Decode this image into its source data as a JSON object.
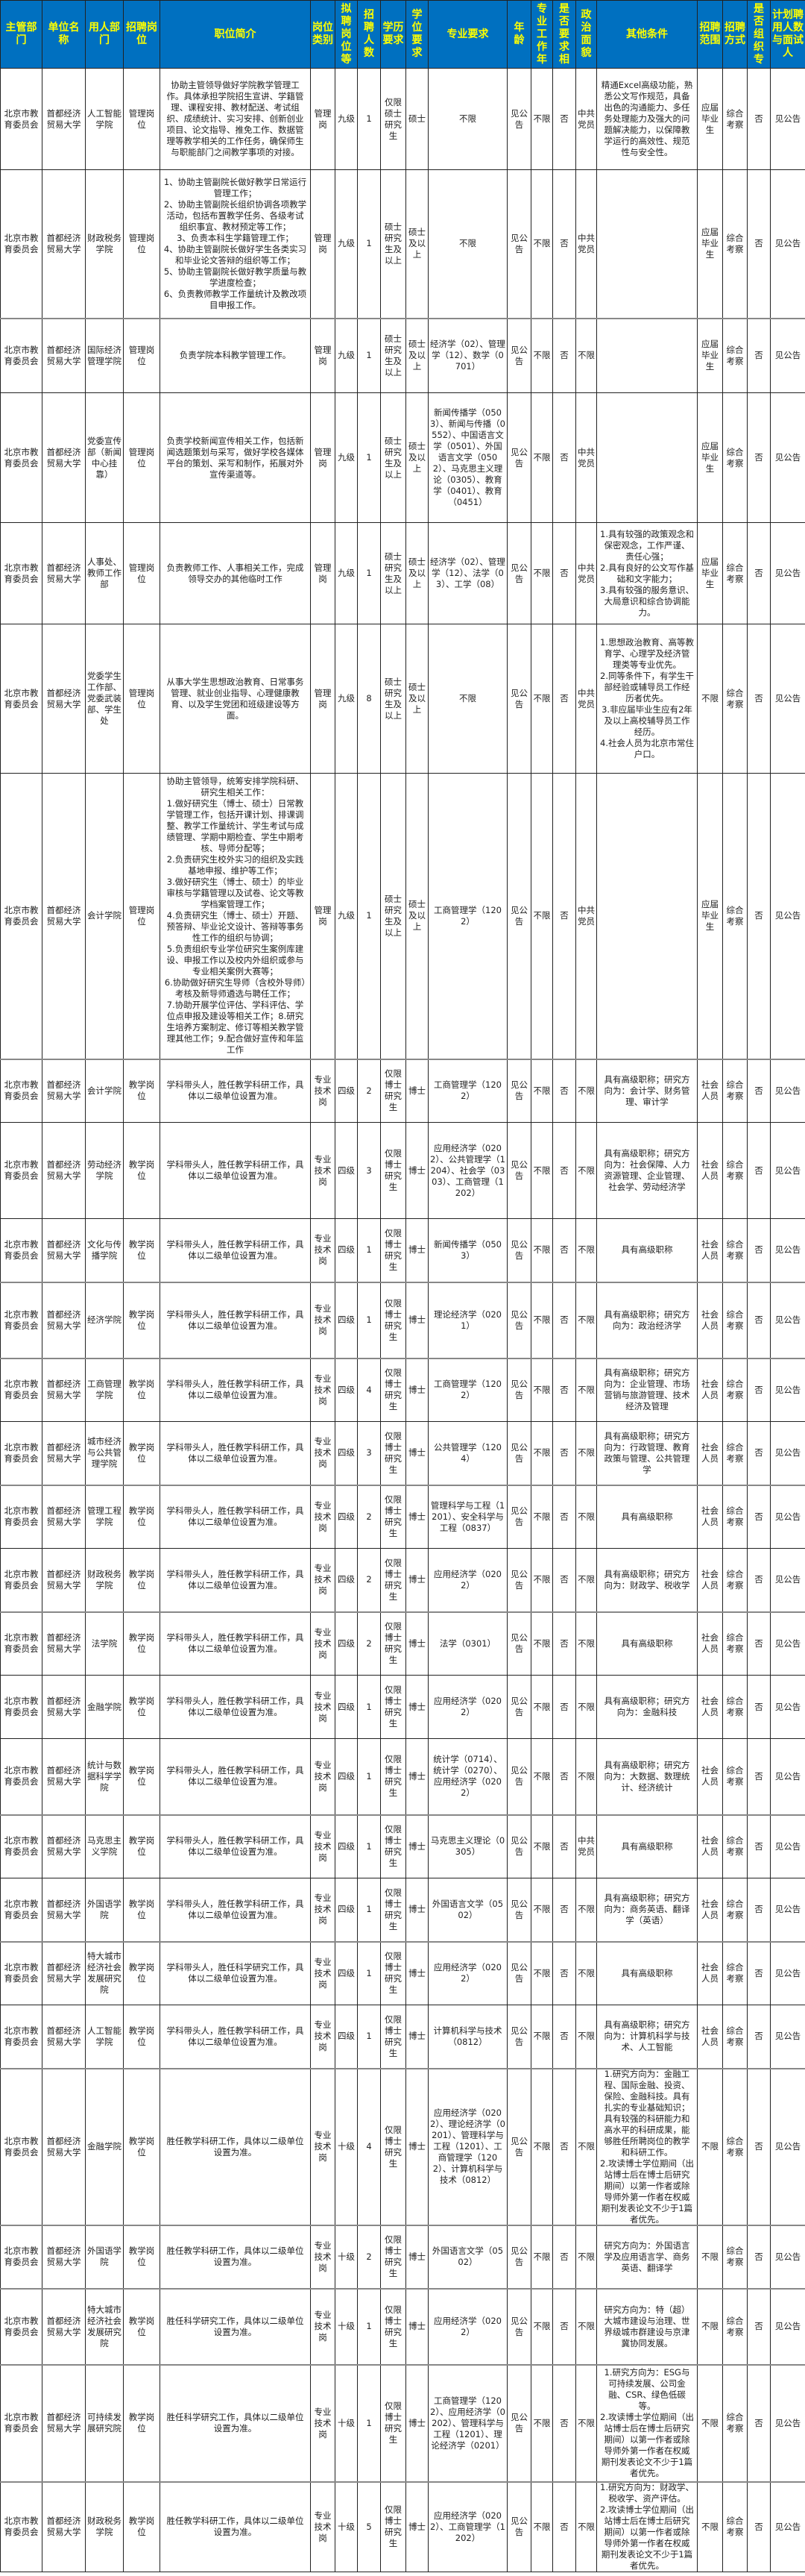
{
  "colors": {
    "header_bg": "#0070C0",
    "header_text": "#FFFF00"
  },
  "headers": [
    "主管部门",
    "单位名称",
    "用人部门",
    "招聘岗位",
    "职位简介",
    "岗位类别",
    "拟聘岗位等",
    "招聘人数",
    "学历要求",
    "学位要求",
    "专业要求",
    "年龄",
    "专业工作年",
    "是否要求相",
    "政治面貌",
    "其他条件",
    "招聘范围",
    "招聘方式",
    "是否组织专",
    "计划聘用人数与面试人"
  ],
  "rows": [
    [
      "北京市教育委员会",
      "首都经济贸易大学",
      "人工智能学院",
      "管理岗位",
      "协助主管领导做好学院教学管理工作。具体承担学院招生宣讲、学籍管理、课程安排、教材配送、考试组织、成绩统计、实习安排、创新创业项目、论文指导、推免工作、数据管理等教学相关的工作任务，确保师生与职能部门之间教学事项的对接。",
      "管理岗",
      "九级",
      "1",
      "仅限硕士研究生",
      "硕士",
      "不限",
      "见公告",
      "不限",
      "否",
      "中共党员",
      "精通Excel高级功能，熟悉公文写作规范，具备出色的沟通能力、多任务处理能力及强大的问题解决能力，以保障教学运行的高效性、规范性与安全性。",
      "应届毕业生",
      "综合考察",
      "否",
      "见公告"
    ],
    [
      "北京市教育委员会",
      "首都经济贸易大学",
      "财政税务学院",
      "管理岗位",
      "1、协助主管副院长做好教学日常运行管理工作；\n2、协助主管副院长组织协调各项教学活动，包括布置教学任务、各级考试组织事宜、教材预定等工作；\n3、负责本科生学籍管理工作；\n4、协助主管副院长做好学生各类实习和毕业论文答辩的组织等工作；\n5、协助主管副院长做好教学质量与教学进度检查；\n6、负责教师教学工作量统计及教改项目申报工作。",
      "管理岗",
      "九级",
      "1",
      "硕士研究生及以上",
      "硕士及以上",
      "不限",
      "见公告",
      "不限",
      "否",
      "中共党员",
      "",
      "应届毕业生",
      "综合考察",
      "否",
      "见公告"
    ],
    [
      "北京市教育委员会",
      "首都经济贸易大学",
      "国际经济管理学院",
      "管理岗位",
      "负责学院本科教学管理工作。",
      "管理岗",
      "九级",
      "1",
      "硕士研究生及以上",
      "硕士及以上",
      "经济学（02）、管理学（12）、数学（0701）",
      "见公告",
      "不限",
      "否",
      "不限",
      "",
      "应届毕业生",
      "综合考察",
      "否",
      "见公告"
    ],
    [
      "北京市教育委员会",
      "首都经济贸易大学",
      "党委宣传部（新闻中心挂靠）",
      "管理岗位",
      "负责学校新闻宣传相关工作，包括新闻选题策划与采写，做好学校各媒体平台的策划、采写和制作，拓展对外宣传渠道等。",
      "管理岗",
      "九级",
      "1",
      "硕士研究生及以上",
      "硕士及以上",
      "新闻传播学（0503）、新闻与传播（0552）、中国语言文学（0501）、外国语言文学（0502）、马克思主义理论（0305）、教育学（0401）、教育（0451）",
      "见公告",
      "不限",
      "否",
      "中共党员",
      "",
      "应届毕业生",
      "综合考察",
      "否",
      "见公告"
    ],
    [
      "北京市教育委员会",
      "首都经济贸易大学",
      "人事处、教师工作部",
      "管理岗位",
      "负责教师工作、人事相关工作，完成领导交办的其他临时工作",
      "管理岗",
      "九级",
      "1",
      "硕士研究生及以上",
      "硕士及以上",
      "经济学（02）、管理学（12）、法学（03）、工学（08）",
      "见公告",
      "不限",
      "否",
      "中共党员",
      "1.具有较强的政策观念和保密观念，工作严谨、责任心强；\n2.具有良好的公文写作基础和文字能力；\n3.具有较强的服务意识、大局意识和综合协调能力。",
      "应届毕业生",
      "综合考察",
      "否",
      "见公告"
    ],
    [
      "北京市教育委员会",
      "首都经济贸易大学",
      "党委学生工作部、党委武装部、学生处",
      "管理岗位",
      "从事大学生思想政治教育、日常事务管理、就业创业指导、心理健康教育、以及学生党团和班级建设等方面。",
      "管理岗",
      "九级",
      "8",
      "硕士研究生及以上",
      "硕士及以上",
      "不限",
      "见公告",
      "不限",
      "否",
      "中共党员",
      "1.思想政治教育、高等教育学、心理学及经济管理类等专业优先。\n2.同等条件下，有学生干部经验或辅导员工作经历者优先。\n3.非应届毕业生应有2年及以上高校辅导员工作经历。\n4.社会人员为北京市常住户口。",
      "不限",
      "综合考察",
      "否",
      "见公告"
    ],
    [
      "北京市教育委员会",
      "首都经济贸易大学",
      "会计学院",
      "管理岗位",
      "协助主管领导，统筹安排学院科研、研究生相关工作：\n1.做好研究生（博士、硕士）日常教学管理工作，包括开课计划、排课调整、教学工作量统计、学生考试与成绩管理、学期中期检查、学生中期考核、导师分配等；\n2.负责研究生校外实习的组织及实践基地申报、维护等工作；\n3.做好研究生（博士、硕士）的毕业审核与学籍管理以及试卷、论文等教学档案管理工作；\n4.负责研究生（博士、硕士）开题、预答辩、毕业论文设计、答辩等事务性工作的组织与协调；\n5.负责组织专业学位研究生案例库建设、申报工作以及校内外组织或参与专业相关案例大赛等；\n6.协助做好研究生导师（含校外导师）考核及新导师遴选与聘任工作；\n7.协助开展学位评估、学科评估、学位点申报及建设等相关工作；8.研究生培养方案制定、修订等相关教学管理其他工作；9.配合做好宣传和年监工作",
      "管理岗",
      "九级",
      "1",
      "硕士研究生及以上",
      "硕士及以上",
      "工商管理学（1202）",
      "见公告",
      "不限",
      "否",
      "中共党员",
      "",
      "应届毕业生",
      "综合考察",
      "否",
      "见公告"
    ],
    [
      "北京市教育委员会",
      "首都经济贸易大学",
      "会计学院",
      "教学岗位",
      "学科带头人，胜任教学科研工作，具体以二级单位设置为准。",
      "专业技术岗",
      "四级",
      "2",
      "仅限博士研究生",
      "博士",
      "工商管理学（1202）",
      "见公告",
      "不限",
      "否",
      "不限",
      "具有高级职称；研究方向为：会计学、财务管理、审计学",
      "社会人员",
      "综合考察",
      "否",
      "见公告"
    ],
    [
      "北京市教育委员会",
      "首都经济贸易大学",
      "劳动经济学院",
      "教学岗位",
      "学科带头人，胜任教学科研工作，具体以二级单位设置为准。",
      "专业技术岗",
      "四级",
      "3",
      "仅限博士研究生",
      "博士",
      "应用经济学（0202）、公共管理学（1204）、社会学（0303）、工商管理（1202）",
      "见公告",
      "不限",
      "否",
      "不限",
      "具有高级职称；研究方向为：社会保障、人力资源管理、企业管理、社会学、劳动经济学",
      "社会人员",
      "综合考察",
      "否",
      "见公告"
    ],
    [
      "北京市教育委员会",
      "首都经济贸易大学",
      "文化与传播学院",
      "教学岗位",
      "学科带头人，胜任教学科研工作，具体以二级单位设置为准。",
      "专业技术岗",
      "四级",
      "1",
      "仅限博士研究生",
      "博士",
      "新闻传播学（0503）",
      "见公告",
      "不限",
      "否",
      "不限",
      "具有高级职称",
      "社会人员",
      "综合考察",
      "否",
      "见公告"
    ],
    [
      "北京市教育委员会",
      "首都经济贸易大学",
      "经济学院",
      "教学岗位",
      "学科带头人，胜任教学科研工作，具体以二级单位设置为准。",
      "专业技术岗",
      "四级",
      "1",
      "仅限博士研究生",
      "博士",
      "理论经济学（0201）",
      "见公告",
      "不限",
      "否",
      "不限",
      "具有高级职称；研究方向为：政治经济学",
      "社会人员",
      "综合考察",
      "否",
      "见公告"
    ],
    [
      "北京市教育委员会",
      "首都经济贸易大学",
      "工商管理学院",
      "教学岗位",
      "学科带头人，胜任教学科研工作，具体以二级单位设置为准。",
      "专业技术岗",
      "四级",
      "4",
      "仅限博士研究生",
      "博士",
      "工商管理学（1202）",
      "见公告",
      "不限",
      "否",
      "不限",
      "具有高级职称；研究方向为：企业管理、市场营销与旅游管理、技术经济及管理",
      "社会人员",
      "综合考察",
      "否",
      "见公告"
    ],
    [
      "北京市教育委员会",
      "首都经济贸易大学",
      "城市经济与公共管理学院",
      "教学岗位",
      "学科带头人，胜任教学科研工作，具体以二级单位设置为准。",
      "专业技术岗",
      "四级",
      "3",
      "仅限博士研究生",
      "博士",
      "公共管理学（1204）",
      "见公告",
      "不限",
      "否",
      "不限",
      "具有高级职称；研究方向为：行政管理、教育政策与管理、公共管理学",
      "社会人员",
      "综合考察",
      "否",
      "见公告"
    ],
    [
      "北京市教育委员会",
      "首都经济贸易大学",
      "管理工程学院",
      "教学岗位",
      "学科带头人，胜任教学科研工作，具体以二级单位设置为准。",
      "专业技术岗",
      "四级",
      "2",
      "仅限博士研究生",
      "博士",
      "管理科学与工程（1201）、安全科学与工程（0837）",
      "见公告",
      "不限",
      "否",
      "不限",
      "具有高级职称",
      "社会人员",
      "综合考察",
      "否",
      "见公告"
    ],
    [
      "北京市教育委员会",
      "首都经济贸易大学",
      "财政税务学院",
      "教学岗位",
      "学科带头人，胜任教学科研工作，具体以二级单位设置为准。",
      "专业技术岗",
      "四级",
      "2",
      "仅限博士研究生",
      "博士",
      "应用经济学（0202）",
      "见公告",
      "不限",
      "否",
      "不限",
      "具有高级职称；研究方向为：财政学、税收学",
      "社会人员",
      "综合考察",
      "否",
      "见公告"
    ],
    [
      "北京市教育委员会",
      "首都经济贸易大学",
      "法学院",
      "教学岗位",
      "学科带头人，胜任教学科研工作，具体以二级单位设置为准。",
      "专业技术岗",
      "四级",
      "2",
      "仅限博士研究生",
      "博士",
      "法学（0301）",
      "见公告",
      "不限",
      "否",
      "不限",
      "具有高级职称",
      "社会人员",
      "综合考察",
      "否",
      "见公告"
    ],
    [
      "北京市教育委员会",
      "首都经济贸易大学",
      "金融学院",
      "教学岗位",
      "学科带头人，胜任教学科研工作，具体以二级单位设置为准。",
      "专业技术岗",
      "四级",
      "1",
      "仅限博士研究生",
      "博士",
      "应用经济学（0202）",
      "见公告",
      "不限",
      "否",
      "不限",
      "具有高级职称；研究方向为：金融科技",
      "社会人员",
      "综合考察",
      "否",
      "见公告"
    ],
    [
      "北京市教育委员会",
      "首都经济贸易大学",
      "统计与数据科学学院",
      "教学岗位",
      "学科带头人，胜任教学科研工作，具体以二级单位设置为准。",
      "专业技术岗",
      "四级",
      "1",
      "仅限博士研究生",
      "博士",
      "统计学（0714）、统计学（0270）、应用经济学（0202）",
      "见公告",
      "不限",
      "否",
      "不限",
      "具有高级职称；研究方向为：大数据、数理统计、经济统计",
      "社会人员",
      "综合考察",
      "否",
      "见公告"
    ],
    [
      "北京市教育委员会",
      "首都经济贸易大学",
      "马克思主义学院",
      "教学岗位",
      "学科带头人，胜任教学科研工作，具体以二级单位设置为准。",
      "专业技术岗",
      "四级",
      "1",
      "仅限博士研究生",
      "博士",
      "马克思主义理论（0305）",
      "见公告",
      "不限",
      "否",
      "中共党员",
      "具有高级职称",
      "社会人员",
      "综合考察",
      "否",
      "见公告"
    ],
    [
      "北京市教育委员会",
      "首都经济贸易大学",
      "外国语学院",
      "教学岗位",
      "学科带头人，胜任教学科研工作，具体以二级单位设置为准。",
      "专业技术岗",
      "四级",
      "1",
      "仅限博士研究生",
      "博士",
      "外国语言文学（0502）",
      "见公告",
      "不限",
      "否",
      "不限",
      "具有高级职称；研究方向为：商务英语、翻译学（英语）",
      "社会人员",
      "综合考察",
      "否",
      "见公告"
    ],
    [
      "北京市教育委员会",
      "首都经济贸易大学",
      "特大城市经济社会发展研究院",
      "教学岗位",
      "学科带头人，胜任科学研究工作，具体以二级单位设置为准。",
      "专业技术岗",
      "四级",
      "1",
      "仅限博士研究生",
      "博士",
      "应用经济学（0202）",
      "见公告",
      "不限",
      "否",
      "不限",
      "具有高级职称",
      "社会人员",
      "综合考察",
      "否",
      "见公告"
    ],
    [
      "北京市教育委员会",
      "首都经济贸易大学",
      "人工智能学院",
      "教学岗位",
      "学科带头人，胜任教学科研工作，具体以二级单位设置为准。",
      "专业技术岗",
      "四级",
      "1",
      "仅限博士研究生",
      "博士",
      "计算机科学与技术（0812）",
      "见公告",
      "不限",
      "否",
      "不限",
      "具有高级职称；研究方向为：计算机科学与技术、人工智能",
      "社会人员",
      "综合考察",
      "否",
      "见公告"
    ],
    [
      "北京市教育委员会",
      "首都经济贸易大学",
      "金融学院",
      "教学岗位",
      "胜任教学科研工作，具体以二级单位设置为准。",
      "专业技术岗",
      "十级",
      "4",
      "仅限博士研究生",
      "博士",
      "应用经济学（0202）、理论经济学（0201）、管理科学与工程（1201）、工商管理学（1202）、计算机科学与技术（0812）",
      "见公告",
      "不限",
      "否",
      "不限",
      "1.研究方向为：金融工程、国际金融、投资、保险、金融科技。具有扎实的专业基础知识；具有较强的科研能力和高水平的科研成果，能够胜任所聘岗位的教学和科研工作。\n2.攻读博士学位期间（出站博士后在博士后研究期间）以第一作者或除导师外第一作者在权威期刊发表论文不少于1篇者优先。",
      "不限",
      "综合考察",
      "否",
      "见公告"
    ],
    [
      "北京市教育委员会",
      "首都经济贸易大学",
      "外国语学院",
      "教学岗位",
      "胜任教学科研工作，具体以二级单位设置为准。",
      "专业技术岗",
      "十级",
      "2",
      "仅限博士研究生",
      "博士",
      "外国语言文学（0502）",
      "见公告",
      "不限",
      "否",
      "不限",
      "研究方向为：外国语言学及应用语言学、商务英语、翻译学",
      "不限",
      "综合考察",
      "否",
      "见公告"
    ],
    [
      "北京市教育委员会",
      "首都经济贸易大学",
      "特大城市经济社会发展研究院",
      "教学岗位",
      "胜任科学研究工作，具体以二级单位设置为准。",
      "专业技术岗",
      "十级",
      "1",
      "仅限博士研究生",
      "博士",
      "应用经济学（0202）",
      "见公告",
      "不限",
      "否",
      "不限",
      "研究方向为：特（超）大城市建设与治理、世界级城市群建设与京津冀协同发展。",
      "不限",
      "综合考察",
      "否",
      "见公告"
    ],
    [
      "北京市教育委员会",
      "首都经济贸易大学",
      "可持续发展研究院",
      "教学岗位",
      "胜任科学研究工作，具体以二级单位设置为准。",
      "专业技术岗",
      "十级",
      "1",
      "仅限博士研究生",
      "博士",
      "工商管理学（1202）、应用经济学（0202）、管理科学与工程（1201）、理论经济学（0201）",
      "见公告",
      "不限",
      "否",
      "不限",
      "1.研究方向为：ESG与可持续发展、公司金融、CSR、绿色低碳等。\n2.攻读博士学位期间（出站博士后在博士后研究期间）以第一作者或除导师外第一作者在权威期刊发表论文不少于1篇者优先。",
      "不限",
      "综合考察",
      "否",
      "见公告"
    ],
    [
      "北京市教育委员会",
      "首都经济贸易大学",
      "财政税务学院",
      "教学岗位",
      "胜任教学科研工作，具体以二级单位设置为准。",
      "专业技术岗",
      "十级",
      "5",
      "仅限博士研究生",
      "博士",
      "应用经济学（0202）、工商管理学（1202）",
      "见公告",
      "不限",
      "否",
      "不限",
      "1.研究方向为：财政学、税收学、资产评估。\n2.攻读博士学位期间（出站博士后在博士后研究期间）以第一作者或除导师外第一作者在权威期刊发表论文不少于1篇者优先。",
      "不限",
      "综合考察",
      "否",
      "见公告"
    ]
  ]
}
